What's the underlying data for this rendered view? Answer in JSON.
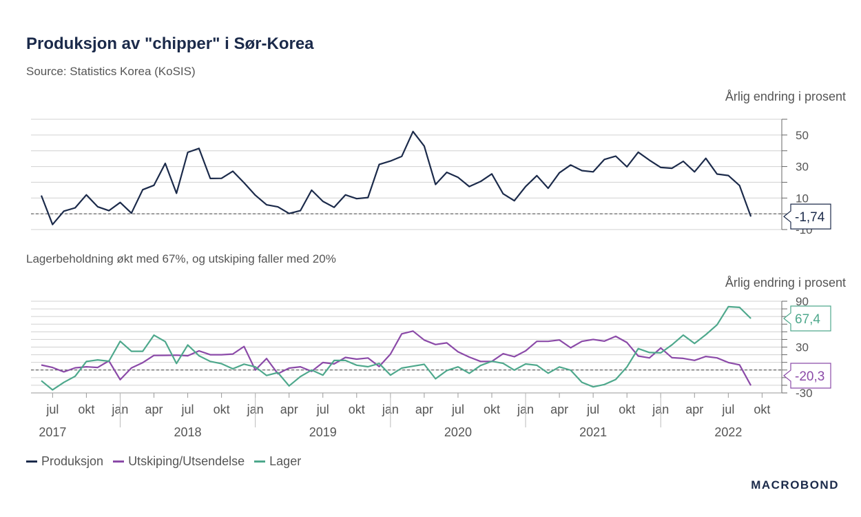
{
  "title": "Produksjon av \"chipper\" i Sør-Korea",
  "source": "Source: Statistics Korea (KoSIS)",
  "brand": "MACROBOND",
  "colors": {
    "produksjon": "#1b2a4a",
    "utskiping": "#8b4aa8",
    "lager": "#4ea88c",
    "axis": "#666666",
    "grid": "#d0d0d0"
  },
  "chart_data": [
    {
      "type": "line",
      "title": "",
      "ylabel": "Årlig endring i prosent",
      "ylim": [
        -10,
        60
      ],
      "yticks": [
        "50",
        "30",
        "10",
        "-10"
      ],
      "ytick_values": [
        50,
        30,
        10,
        -10
      ],
      "reference_line": 0,
      "last_value_label": "-1,74",
      "series": [
        {
          "name": "Produksjon",
          "values": [
            11.6,
            -6.8,
            1.7,
            3.8,
            12.0,
            4.5,
            2.0,
            7.2,
            0.4,
            15.3,
            18.1,
            32.0,
            13.0,
            39.0,
            41.5,
            22.4,
            22.5,
            27.0,
            19.7,
            11.8,
            5.7,
            4.4,
            0.2,
            2.0,
            15.0,
            7.9,
            4.1,
            12.0,
            9.6,
            10.3,
            31.3,
            33.5,
            36.4,
            52.2,
            43.0,
            18.6,
            26.3,
            23.1,
            17.3,
            20.5,
            25.3,
            12.7,
            8.3,
            17.3,
            24.2,
            16.2,
            26.0,
            31.0,
            27.4,
            26.6,
            34.5,
            36.6,
            29.8,
            39.1,
            34.0,
            29.4,
            28.9,
            33.3,
            26.6,
            35.2,
            25.2,
            24.3,
            17.9,
            -1.74
          ]
        }
      ]
    },
    {
      "type": "line",
      "title": "Lagerbeholdning økt med 67%, og utskiping faller med 20%",
      "ylabel": "Årlig endring i prosent",
      "ylim": [
        -30,
        90
      ],
      "yticks": [
        "90",
        "30",
        "-30"
      ],
      "ytick_values": [
        90,
        30,
        -30
      ],
      "reference_line": 0,
      "last_value_labels": {
        "Utskiping/Utsendelse": "-20,3",
        "Lager": "67,4"
      },
      "series": [
        {
          "name": "Utskiping/Utsendelse",
          "values": [
            6.5,
            3.3,
            -2.5,
            2.8,
            4.2,
            3.3,
            12.0,
            -12.7,
            2.7,
            9.6,
            19.1,
            19.2,
            19.4,
            18.6,
            25.0,
            20.0,
            20.0,
            20.9,
            30.8,
            0.0,
            15.0,
            -4.9,
            2.5,
            4.2,
            -1.8,
            9.8,
            8.0,
            16.5,
            14.2,
            15.7,
            4.6,
            20.9,
            47.3,
            50.9,
            39.2,
            33.3,
            35.5,
            23.8,
            16.9,
            11.2,
            11.2,
            21.3,
            17.4,
            25.0,
            37.5,
            37.5,
            39.3,
            29.1,
            37.5,
            40.0,
            37.8,
            44.1,
            36.0,
            18.3,
            15.8,
            28.8,
            16.1,
            15.2,
            12.6,
            17.7,
            15.8,
            9.8,
            6.7,
            -20.3
          ]
        },
        {
          "name": "Lager",
          "values": [
            -14.0,
            -26.0,
            -16.2,
            -8.2,
            11.1,
            13.2,
            11.5,
            37.6,
            24.5,
            24.5,
            45.6,
            37.1,
            8.5,
            32.8,
            18.6,
            11.2,
            8.3,
            1.6,
            7.6,
            4.1,
            -7.2,
            -3.4,
            -20.8,
            -8.6,
            0.0,
            -6.7,
            12.5,
            12.5,
            6.3,
            4.3,
            8.5,
            -6.7,
            2.5,
            5.0,
            7.4,
            -11.5,
            -0.8,
            4.1,
            -4.4,
            5.9,
            11.4,
            8.7,
            -0.1,
            7.9,
            6.2,
            -4.2,
            4.0,
            -0.2,
            -16.1,
            -22.1,
            -19.0,
            -12.4,
            4.0,
            28.0,
            22.9,
            22.4,
            33.0,
            45.7,
            34.7,
            46.2,
            59.1,
            82.9,
            82.0,
            67.4
          ]
        }
      ]
    },
    {
      "type": "time_axis",
      "month_ticks": [
        "jul",
        "okt",
        "jan",
        "apr",
        "jul",
        "okt",
        "jan",
        "apr",
        "jul",
        "okt",
        "jan",
        "apr",
        "jul",
        "okt",
        "jan",
        "apr",
        "jul",
        "okt",
        "jan",
        "apr",
        "jul",
        "okt"
      ],
      "years": [
        "2017",
        "2018",
        "2019",
        "2020",
        "2021",
        "2022"
      ],
      "first_month": "2017-06",
      "last_month": "2022-09"
    }
  ],
  "legend": [
    "Produksjon",
    "Utskiping/Utsendelse",
    "Lager"
  ]
}
